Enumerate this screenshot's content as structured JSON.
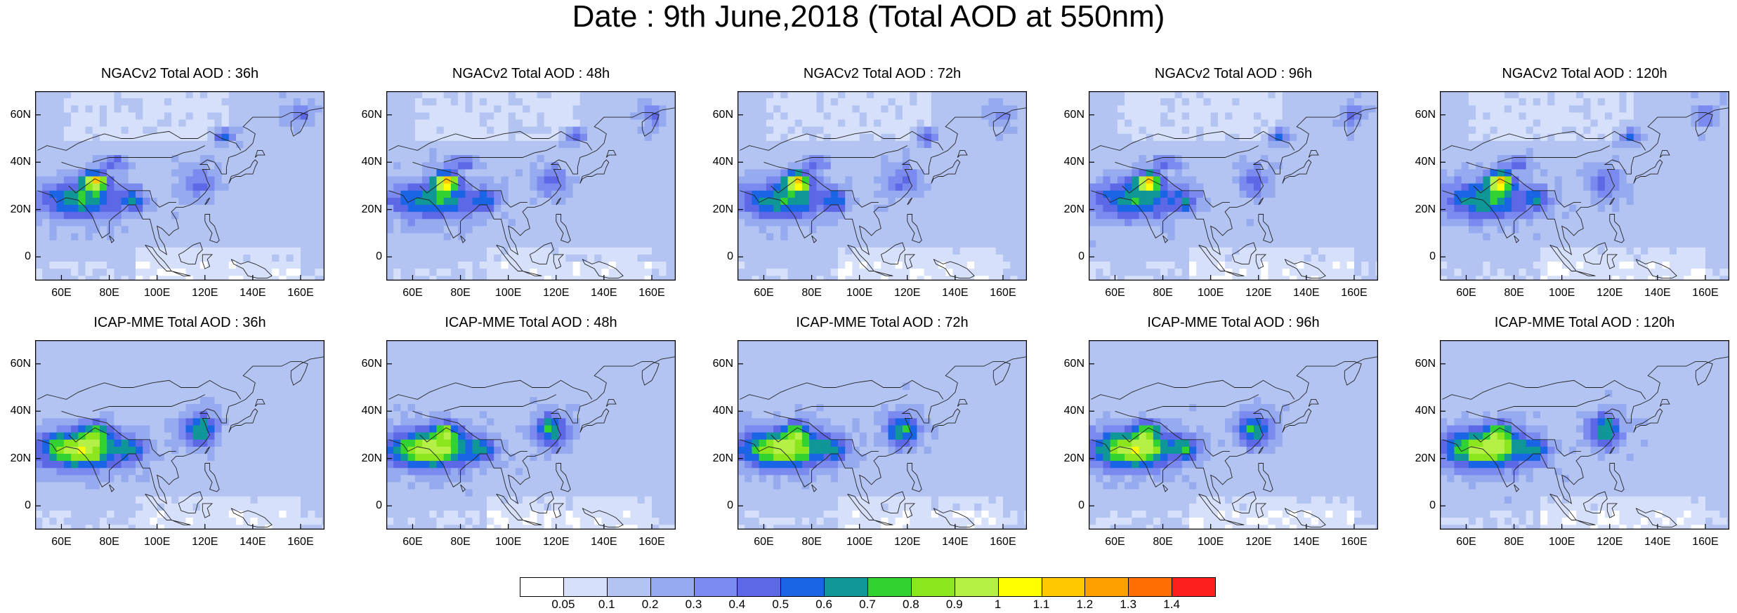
{
  "title": "Date : 9th June,2018 (Total AOD at 550nm)",
  "panels": [
    {
      "title": "NGACv2 Total AOD : 36h"
    },
    {
      "title": "NGACv2 Total AOD : 48h"
    },
    {
      "title": "NGACv2 Total AOD : 72h"
    },
    {
      "title": "NGACv2 Total AOD : 96h"
    },
    {
      "title": "NGACv2 Total AOD : 120h"
    },
    {
      "title": "ICAP-MME Total AOD : 36h"
    },
    {
      "title": "ICAP-MME Total AOD : 48h"
    },
    {
      "title": "ICAP-MME Total AOD : 72h"
    },
    {
      "title": "ICAP-MME Total AOD : 96h"
    },
    {
      "title": "ICAP-MME Total AOD : 120h"
    }
  ],
  "lat_ticks": [
    "60N",
    "40N",
    "20N",
    "0"
  ],
  "lon_ticks": [
    "60E",
    "80E",
    "100E",
    "120E",
    "140E",
    "160E"
  ],
  "colorbar": {
    "labels": [
      "0.05",
      "0.1",
      "0.2",
      "0.3",
      "0.4",
      "0.5",
      "0.6",
      "0.7",
      "0.8",
      "0.9",
      "1",
      "1.1",
      "1.2",
      "1.3",
      "1.4"
    ],
    "colors": [
      "#ffffff",
      "#d6e0fa",
      "#b4c4f2",
      "#96aaf0",
      "#7b8aee",
      "#5c68e6",
      "#1a64e6",
      "#0f9696",
      "#32d232",
      "#8ce61e",
      "#b4f046",
      "#ffff00",
      "#ffc800",
      "#ffa000",
      "#ff6e00",
      "#ff1e1e"
    ]
  }
}
